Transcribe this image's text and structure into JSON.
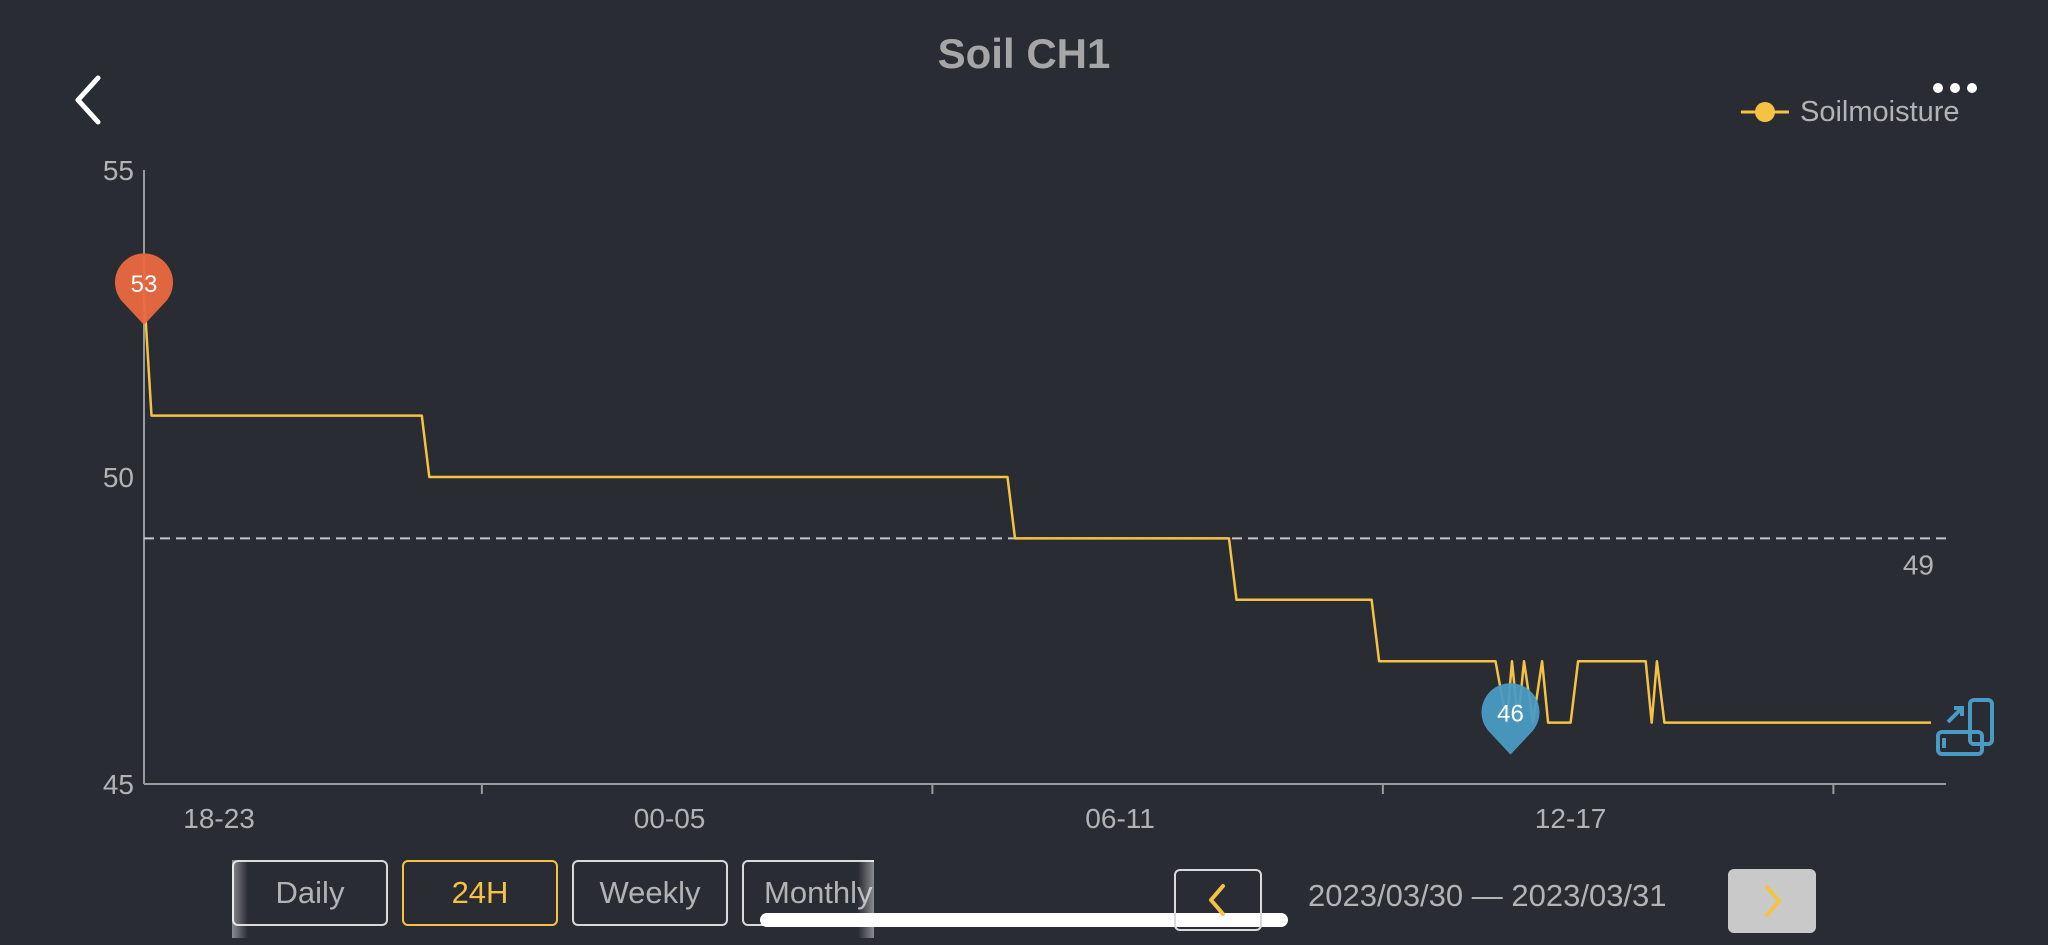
{
  "header": {
    "title": "Soil CH1",
    "back_icon": "chevron-left-icon",
    "more_icon": "more-dots-icon"
  },
  "legend": {
    "label": "Soilmoisture"
  },
  "colors": {
    "background": "#2a2c33",
    "line": "#f5c243",
    "max_marker": "#e9693f",
    "min_marker": "#4a9bc4",
    "axis": "#9a9a9a",
    "text": "#b3b3b3"
  },
  "chart_data": {
    "type": "line",
    "ylim": [
      45,
      55
    ],
    "xlim": [
      0,
      24
    ],
    "y_ticks": [
      45,
      50,
      55
    ],
    "x_tick_labels": [
      {
        "label": "18-23",
        "x": 1
      },
      {
        "label": "00-05",
        "x": 7
      },
      {
        "label": "06-11",
        "x": 13
      },
      {
        "label": "12-17",
        "x": 19
      }
    ],
    "x_tick_marks": [
      4.5,
      10.5,
      16.5,
      22.5
    ],
    "average": {
      "value": 49,
      "label": "49"
    },
    "max_marker": {
      "label": "53",
      "x": 0,
      "y": 53
    },
    "min_marker": {
      "label": "46",
      "x": 18.2,
      "y": 46
    },
    "series": [
      {
        "name": "Soilmoisture",
        "points": [
          [
            0,
            53
          ],
          [
            0.1,
            51
          ],
          [
            3.7,
            51
          ],
          [
            3.8,
            50
          ],
          [
            11.5,
            50
          ],
          [
            11.6,
            49
          ],
          [
            14.45,
            49
          ],
          [
            14.55,
            48
          ],
          [
            16.35,
            48
          ],
          [
            16.45,
            47
          ],
          [
            18.0,
            47
          ],
          [
            18.15,
            46
          ],
          [
            18.22,
            47
          ],
          [
            18.3,
            46
          ],
          [
            18.38,
            47
          ],
          [
            18.5,
            46
          ],
          [
            18.62,
            47
          ],
          [
            18.7,
            46
          ],
          [
            19.0,
            46
          ],
          [
            19.1,
            47
          ],
          [
            20.0,
            47
          ],
          [
            20.08,
            46
          ],
          [
            20.15,
            47
          ],
          [
            20.25,
            46
          ],
          [
            23.8,
            46
          ]
        ]
      }
    ]
  },
  "tabs": [
    {
      "label": "Daily",
      "active": false
    },
    {
      "label": "24H",
      "active": true
    },
    {
      "label": "Weekly",
      "active": false
    },
    {
      "label": "Monthly",
      "active": false
    }
  ],
  "date_nav": {
    "range": "2023/03/30 — 2023/03/31",
    "prev_icon": "chevron-left-icon",
    "next_icon": "chevron-right-icon"
  },
  "rotate_icon": "rotate-screen-icon"
}
